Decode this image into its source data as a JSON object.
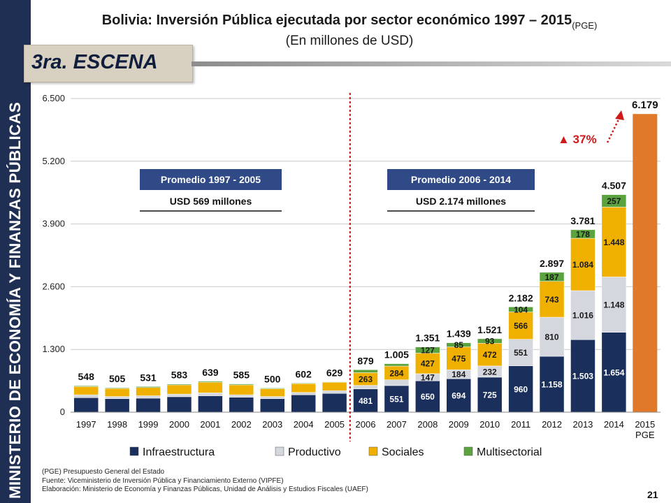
{
  "sidebar": {
    "text": "MINISTERIO DE ECONOMÍA Y FINANZAS PÚBLICAS"
  },
  "header": {
    "title": "Bolivia: Inversión Pública ejecutada por sector económico 1997 – 2015",
    "title_suffix": "(PGE)",
    "subtitle": "(En millones de USD)",
    "scene": "3ra. ESCENA"
  },
  "chart_data": {
    "type": "bar",
    "stacked": true,
    "title": "Bolivia: Inversión Pública ejecutada por sector económico 1997 – 2015 (PGE)",
    "ylabel": "En millones de USD",
    "ylim": [
      0,
      6500
    ],
    "yticks": [
      0,
      1300,
      2600,
      3900,
      5200,
      6500
    ],
    "ytick_labels": [
      "0",
      "1.300",
      "2.600",
      "3.900",
      "5.200",
      "6.500"
    ],
    "categories": [
      "1997",
      "1998",
      "1999",
      "2000",
      "2001",
      "2002",
      "2003",
      "2004",
      "2005",
      "2006",
      "2007",
      "2008",
      "2009",
      "2010",
      "2011",
      "2012",
      "2013",
      "2014",
      "2015 PGE"
    ],
    "category_lines": [
      [
        "1997"
      ],
      [
        "1998"
      ],
      [
        "1999"
      ],
      [
        "2000"
      ],
      [
        "2001"
      ],
      [
        "2002"
      ],
      [
        "2003"
      ],
      [
        "2004"
      ],
      [
        "2005"
      ],
      [
        "2006"
      ],
      [
        "2007"
      ],
      [
        "2008"
      ],
      [
        "2009"
      ],
      [
        "2010"
      ],
      [
        "2011"
      ],
      [
        "2012"
      ],
      [
        "2013"
      ],
      [
        "2014"
      ],
      [
        "2015",
        "PGE"
      ]
    ],
    "series": [
      {
        "name": "Infraestructura",
        "color": "#1b2f5c",
        "values": [
          300,
          280,
          290,
          320,
          340,
          310,
          280,
          360,
          390,
          481,
          551,
          650,
          694,
          725,
          960,
          1158,
          1503,
          1654,
          null
        ],
        "labels": [
          null,
          null,
          null,
          null,
          null,
          null,
          null,
          null,
          null,
          "481",
          "551",
          "650",
          "694",
          "725",
          "960",
          "1.158",
          "1.503",
          "1.654",
          null
        ]
      },
      {
        "name": "Productivo",
        "color": "#d4d7dd",
        "values": [
          60,
          45,
          50,
          55,
          60,
          50,
          45,
          50,
          55,
          75,
          120,
          147,
          184,
          232,
          551,
          810,
          1016,
          1148,
          null
        ],
        "labels": [
          null,
          null,
          null,
          null,
          null,
          null,
          null,
          null,
          null,
          null,
          null,
          "147",
          "184",
          "232",
          "551",
          "810",
          "1.016",
          "1.148",
          null
        ]
      },
      {
        "name": "Sociales",
        "color": "#f0b000",
        "values": [
          170,
          165,
          170,
          190,
          220,
          205,
          160,
          180,
          175,
          263,
          284,
          427,
          475,
          472,
          566,
          743,
          1084,
          1448,
          null
        ],
        "labels": [
          null,
          null,
          null,
          null,
          null,
          null,
          null,
          null,
          null,
          "263",
          "284",
          "427",
          "475",
          "472",
          "566",
          "743",
          "1.084",
          "1.448",
          null
        ]
      },
      {
        "name": "Multisectorial",
        "color": "#5aa33e",
        "values": [
          18,
          15,
          21,
          18,
          19,
          20,
          15,
          12,
          9,
          60,
          50,
          127,
          85,
          93,
          104,
          187,
          178,
          257,
          null
        ],
        "labels": [
          null,
          null,
          null,
          null,
          null,
          null,
          null,
          null,
          null,
          null,
          null,
          "127",
          "85",
          "93",
          "104",
          "187",
          "178",
          "257",
          null
        ]
      }
    ],
    "total_2015_pge": 6179,
    "total_2015_label": "6.179",
    "totals": [
      "548",
      "505",
      "531",
      "583",
      "639",
      "585",
      "500",
      "602",
      "629",
      "879",
      "1.005",
      "1.351",
      "1.439",
      "1.521",
      "2.182",
      "2.897",
      "3.781",
      "4.507"
    ],
    "annotations": {
      "growth": "▲ 37%",
      "avg1_title": "Promedio 1997 - 2005",
      "avg1_value": "USD 569 millones",
      "avg2_title": "Promedio 2006 - 2014",
      "avg2_value": "USD 2.174 millones"
    }
  },
  "footnotes": [
    "(PGE) Presupuesto General del Estado",
    "Fuente: Viceministerio de Inversión Pública y Financiamiento Externo (VIPFE)",
    "Elaboración: Ministerio de Economía y Finanzas Públicas, Unidad de Análisis y Estudios Fiscales (UAEF)"
  ],
  "page_number": "21",
  "colors": {
    "sidebar": "#1f2f53",
    "dotted_line": "#c0201f",
    "pge_bar": "#e07a2a",
    "avg_box": "#2f4a86"
  }
}
